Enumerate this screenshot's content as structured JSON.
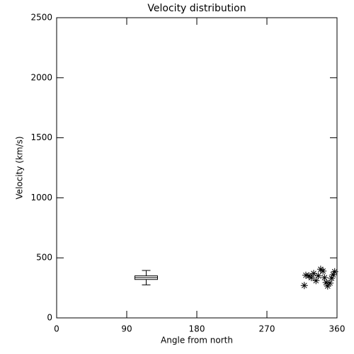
{
  "chart_data": {
    "type": "scatter",
    "title": "Velocity distribution",
    "x_label": "Angle from north",
    "y_label": "Velocity (km/s)",
    "xlim": [
      0,
      360
    ],
    "xticks": [
      0,
      90,
      180,
      270,
      360
    ],
    "ylim": [
      0,
      2500
    ],
    "yticks": [
      0,
      500,
      1000,
      1500,
      2000,
      2500
    ],
    "color": "#000000",
    "x": [
      318,
      320,
      324,
      327,
      330,
      333,
      336,
      339,
      342,
      344,
      346,
      348,
      351,
      353,
      355,
      357
    ],
    "values": [
      270,
      355,
      350,
      335,
      370,
      310,
      350,
      405,
      390,
      335,
      295,
      265,
      290,
      330,
      360,
      385
    ],
    "box": {
      "x": 115,
      "min": 275,
      "q1": 320,
      "median": 335,
      "q3": 350,
      "max": 395
    }
  }
}
